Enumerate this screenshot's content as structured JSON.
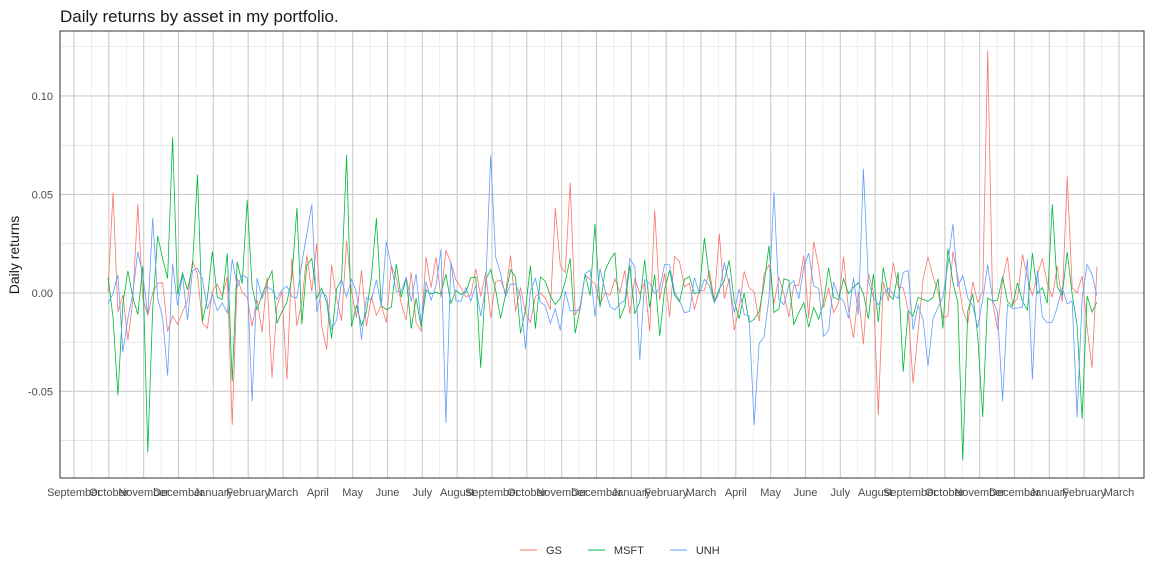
{
  "chart_data": {
    "type": "line",
    "title": "Daily returns by asset in my portfolio.",
    "xlabel": "",
    "ylabel": "Daily returns",
    "ylim": [
      -0.094,
      0.133
    ],
    "y_ticks": [
      -0.05,
      0.0,
      0.05,
      0.1
    ],
    "y_tick_labels": [
      "-0.05",
      "0.00",
      "0.05",
      "0.10"
    ],
    "x_tick_labels": [
      "September",
      "October",
      "November",
      "December",
      "January",
      "February",
      "March",
      "April",
      "May",
      "June",
      "July",
      "August",
      "September",
      "October",
      "November",
      "December",
      "January",
      "February",
      "March",
      "April",
      "May",
      "June",
      "July",
      "August",
      "September",
      "October",
      "November",
      "December",
      "January",
      "February",
      "March"
    ],
    "grid": true,
    "legend_position": "bottom",
    "series": [
      {
        "name": "GS",
        "color": "#F8766D",
        "spikes": [
          [
            1,
            0.051
          ],
          [
            4,
            -0.024
          ],
          [
            6,
            0.045
          ],
          [
            25,
            -0.067
          ],
          [
            33,
            -0.043
          ],
          [
            36,
            -0.044
          ],
          [
            42,
            0.025
          ],
          [
            90,
            0.043
          ],
          [
            93,
            0.056
          ],
          [
            110,
            0.042
          ],
          [
            123,
            0.03
          ],
          [
            142,
            0.026
          ],
          [
            155,
            -0.062
          ],
          [
            162,
            -0.046
          ],
          [
            170,
            0.021
          ],
          [
            177,
            0.123
          ],
          [
            193,
            0.059
          ],
          [
            198,
            -0.038
          ]
        ]
      },
      {
        "name": "MSFT",
        "color": "#00BA38",
        "spikes": [
          [
            2,
            -0.052
          ],
          [
            8,
            -0.081
          ],
          [
            10,
            0.029
          ],
          [
            13,
            0.079
          ],
          [
            18,
            0.06
          ],
          [
            25,
            -0.045
          ],
          [
            28,
            0.047
          ],
          [
            38,
            0.043
          ],
          [
            48,
            0.07
          ],
          [
            54,
            0.038
          ],
          [
            75,
            -0.038
          ],
          [
            98,
            0.035
          ],
          [
            120,
            0.028
          ],
          [
            133,
            0.024
          ],
          [
            160,
            -0.04
          ],
          [
            172,
            -0.085
          ],
          [
            176,
            -0.063
          ],
          [
            190,
            0.045
          ],
          [
            196,
            -0.064
          ]
        ]
      },
      {
        "name": "UNH",
        "color": "#619CFF",
        "spikes": [
          [
            3,
            -0.03
          ],
          [
            9,
            0.038
          ],
          [
            12,
            -0.042
          ],
          [
            29,
            -0.055
          ],
          [
            41,
            0.045
          ],
          [
            56,
            0.026
          ],
          [
            68,
            -0.066
          ],
          [
            77,
            0.07
          ],
          [
            107,
            -0.034
          ],
          [
            130,
            -0.067
          ],
          [
            134,
            0.051
          ],
          [
            152,
            0.063
          ],
          [
            165,
            -0.037
          ],
          [
            170,
            0.035
          ],
          [
            180,
            -0.055
          ],
          [
            186,
            -0.044
          ],
          [
            195,
            -0.063
          ]
        ]
      }
    ]
  }
}
